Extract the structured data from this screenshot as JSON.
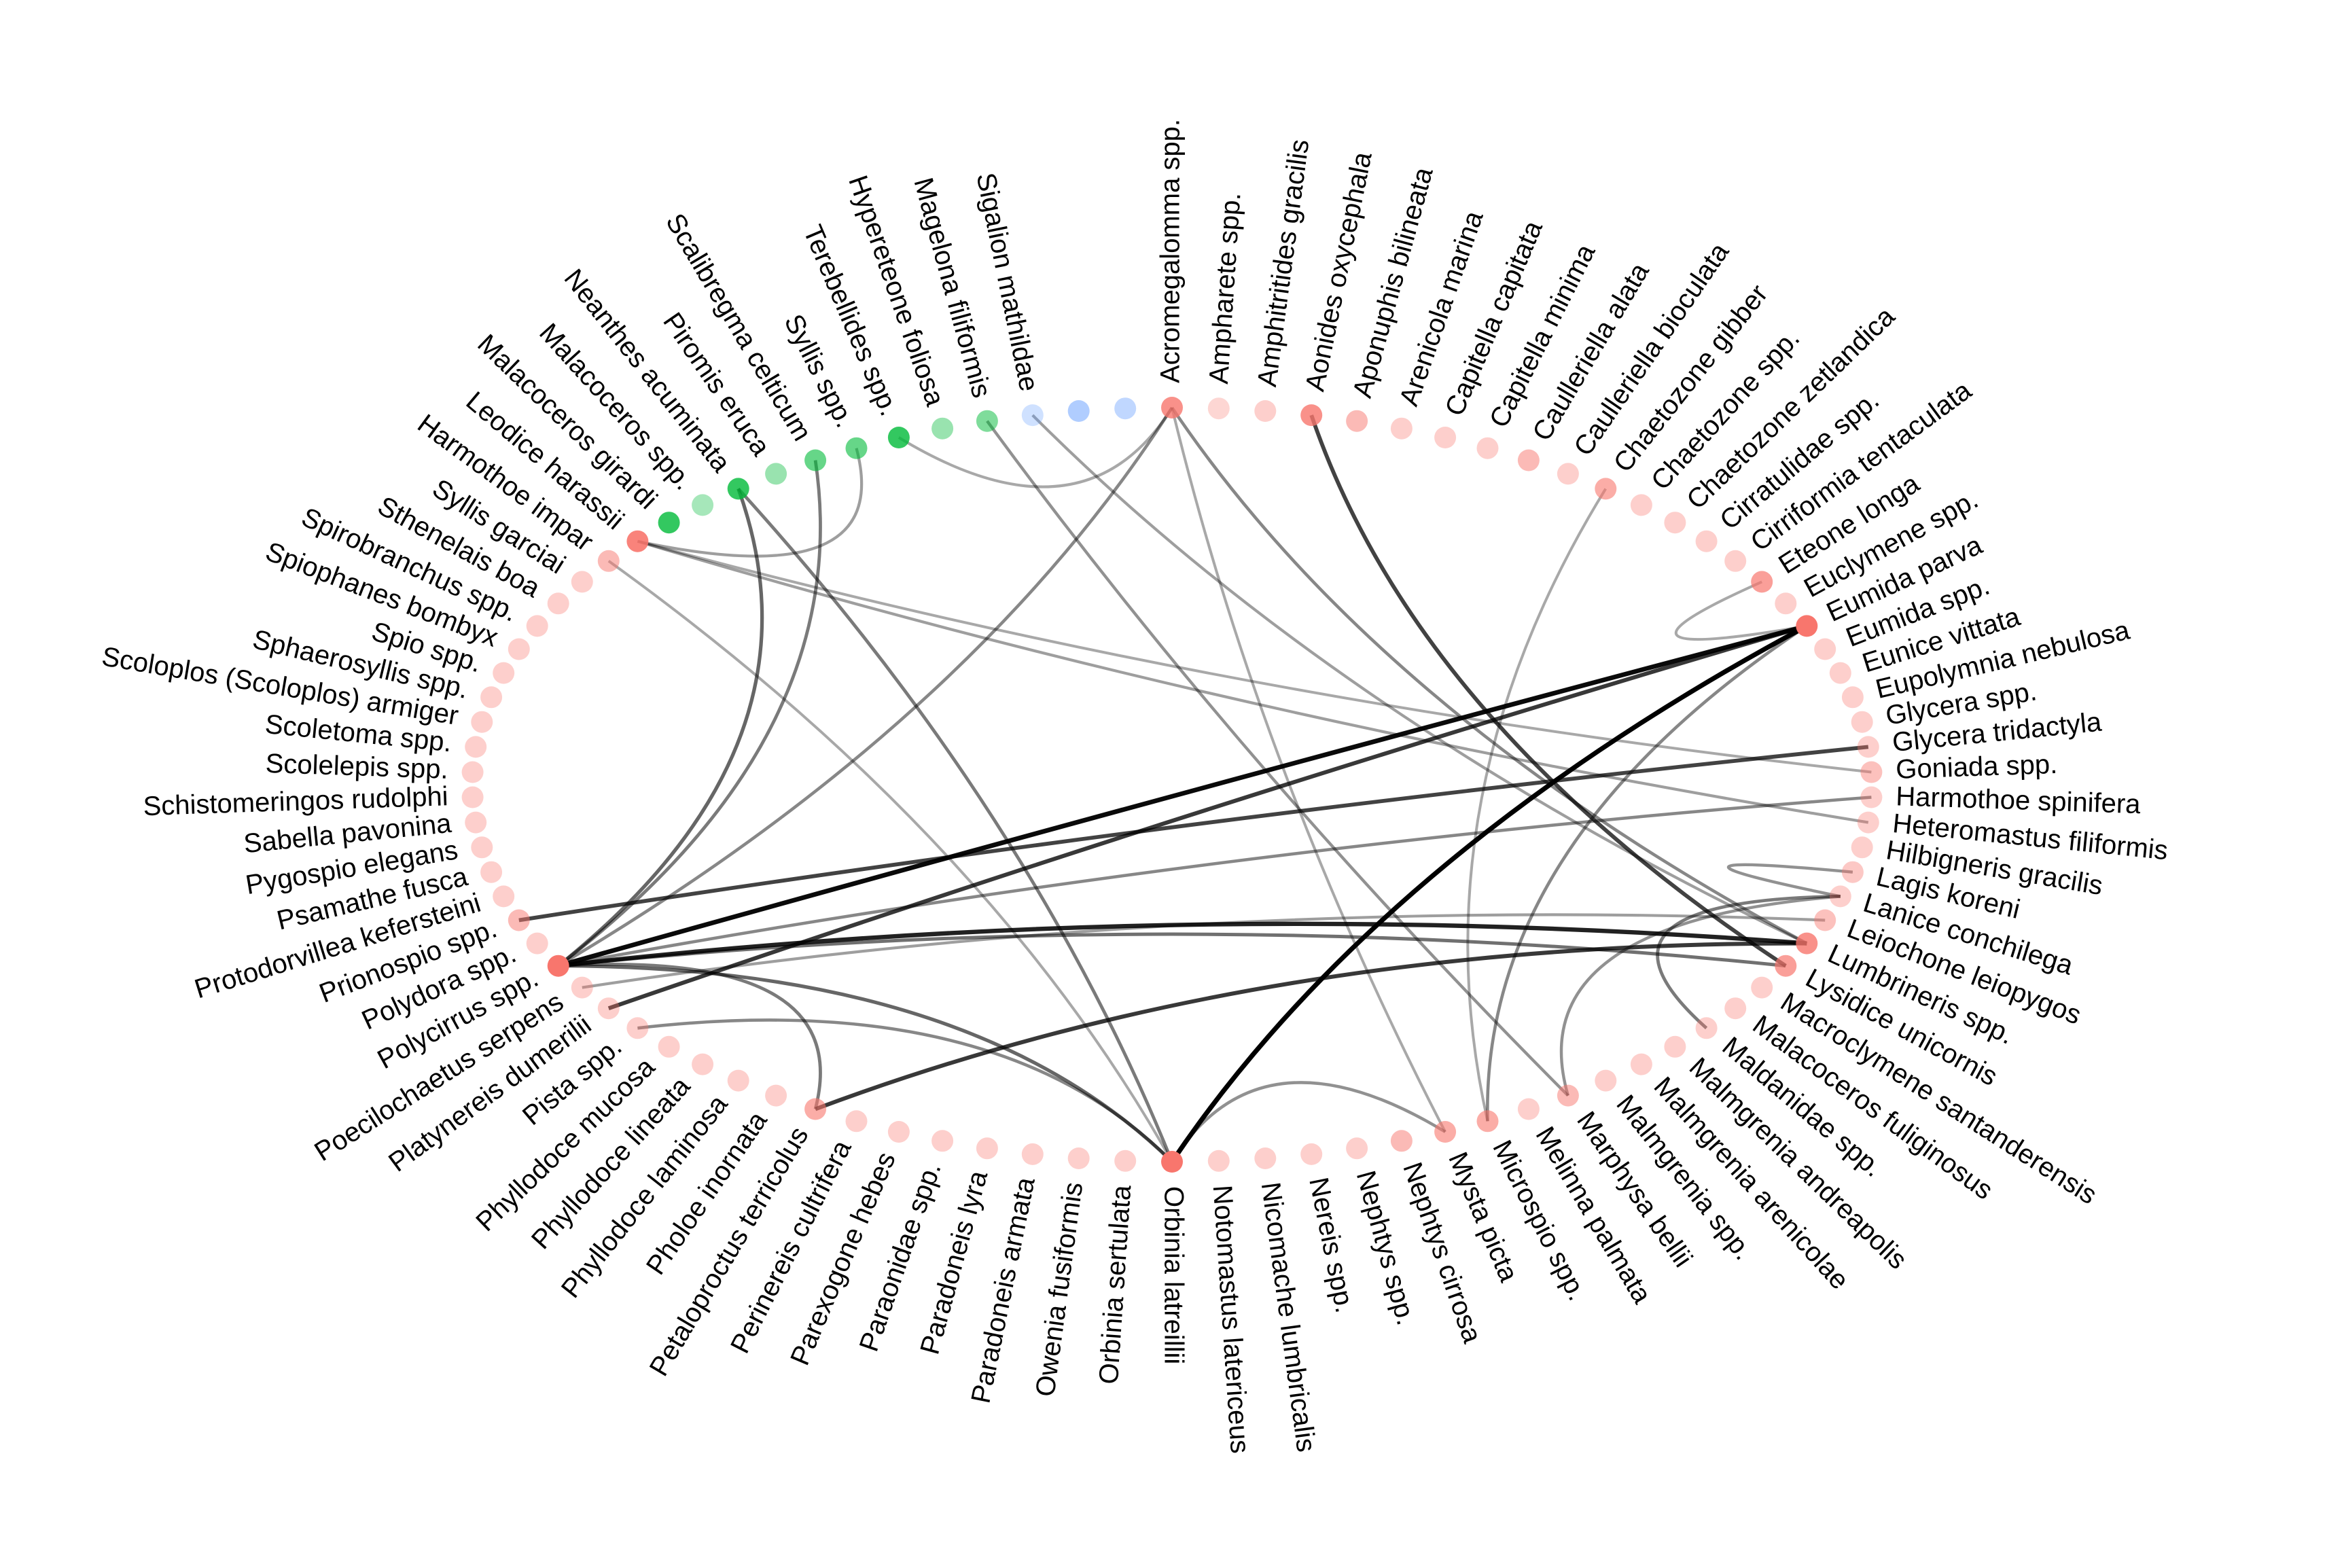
{
  "colors": {
    "red": "#f8766d",
    "green": "#00ba38",
    "blue": "#619cff",
    "edge": "#000000"
  },
  "nodes": [
    {
      "label": "Acromegalomma spp.",
      "group": "red",
      "strength": 0.8
    },
    {
      "label": "Ampharete spp.",
      "group": "red",
      "strength": 0.3
    },
    {
      "label": "Amphitritides gracilis",
      "group": "red",
      "strength": 0.35
    },
    {
      "label": "Aonides oxycephala",
      "group": "red",
      "strength": 0.8
    },
    {
      "label": "Aponuphis bilineata",
      "group": "red",
      "strength": 0.5
    },
    {
      "label": "Arenicola marina",
      "group": "red",
      "strength": 0.35
    },
    {
      "label": "Capitella capitata",
      "group": "red",
      "strength": 0.35
    },
    {
      "label": "Capitella minima",
      "group": "red",
      "strength": 0.35
    },
    {
      "label": "Caulleriella alata",
      "group": "red",
      "strength": 0.5
    },
    {
      "label": "Caulleriella bioculata",
      "group": "red",
      "strength": 0.35
    },
    {
      "label": "Chaetozone gibber",
      "group": "red",
      "strength": 0.6
    },
    {
      "label": "Chaetozone spp.",
      "group": "red",
      "strength": 0.35
    },
    {
      "label": "Chaetozone zetlandica",
      "group": "red",
      "strength": 0.35
    },
    {
      "label": "Cirratulidae spp.",
      "group": "red",
      "strength": 0.35
    },
    {
      "label": "Cirriformia tentaculata",
      "group": "red",
      "strength": 0.35
    },
    {
      "label": "Eteone longa",
      "group": "red",
      "strength": 0.7
    },
    {
      "label": "Euclymene spp.",
      "group": "red",
      "strength": 0.35
    },
    {
      "label": "Eumida parva",
      "group": "red",
      "strength": 1.0
    },
    {
      "label": "Eumida spp.",
      "group": "red",
      "strength": 0.35
    },
    {
      "label": "Eunice vittata",
      "group": "red",
      "strength": 0.35
    },
    {
      "label": "Eupolymnia nebulosa",
      "group": "red",
      "strength": 0.35
    },
    {
      "label": "Glycera spp.",
      "group": "red",
      "strength": 0.35
    },
    {
      "label": "Glycera tridactyla",
      "group": "red",
      "strength": 0.35
    },
    {
      "label": "Goniada spp.",
      "group": "red",
      "strength": 0.45
    },
    {
      "label": "Harmothoe spinifera",
      "group": "red",
      "strength": 0.35
    },
    {
      "label": "Heteromastus filiformis",
      "group": "red",
      "strength": 0.35
    },
    {
      "label": "Hilbigneris gracilis",
      "group": "red",
      "strength": 0.35
    },
    {
      "label": "Lagis koreni",
      "group": "red",
      "strength": 0.4
    },
    {
      "label": "Lanice conchilega",
      "group": "red",
      "strength": 0.35
    },
    {
      "label": "Leiochone leiopygos",
      "group": "red",
      "strength": 0.45
    },
    {
      "label": "Lumbrineris spp.",
      "group": "red",
      "strength": 0.8
    },
    {
      "label": "Lysidice unicornis",
      "group": "red",
      "strength": 0.7
    },
    {
      "label": "Macroclymene santanderensis",
      "group": "red",
      "strength": 0.35
    },
    {
      "label": "Malacoceros fuliginosus",
      "group": "red",
      "strength": 0.35
    },
    {
      "label": "Maldanidae spp.",
      "group": "red",
      "strength": 0.35
    },
    {
      "label": "Malmgrenia andreapolis",
      "group": "red",
      "strength": 0.35
    },
    {
      "label": "Malmgrenia arenicolae",
      "group": "red",
      "strength": 0.35
    },
    {
      "label": "Malmgrenia spp.",
      "group": "red",
      "strength": 0.35
    },
    {
      "label": "Marphysa bellii",
      "group": "red",
      "strength": 0.5
    },
    {
      "label": "Melinna palmata",
      "group": "red",
      "strength": 0.35
    },
    {
      "label": "Microspio spp.",
      "group": "red",
      "strength": 0.6
    },
    {
      "label": "Mysta picta",
      "group": "red",
      "strength": 0.6
    },
    {
      "label": "Nephtys cirrosa",
      "group": "red",
      "strength": 0.5
    },
    {
      "label": "Nephtys spp.",
      "group": "red",
      "strength": 0.35
    },
    {
      "label": "Nereis spp.",
      "group": "red",
      "strength": 0.35
    },
    {
      "label": "Nicomache lumbricalis",
      "group": "red",
      "strength": 0.35
    },
    {
      "label": "Notomastus latericeus",
      "group": "red",
      "strength": 0.35
    },
    {
      "label": "Orbinia latreillii",
      "group": "red",
      "strength": 1.0
    },
    {
      "label": "Orbinia sertulata",
      "group": "red",
      "strength": 0.35
    },
    {
      "label": "Owenia fusiformis",
      "group": "red",
      "strength": 0.35
    },
    {
      "label": "Paradoneis armata",
      "group": "red",
      "strength": 0.35
    },
    {
      "label": "Paradoneis lyra",
      "group": "red",
      "strength": 0.35
    },
    {
      "label": "Paraonidae spp.",
      "group": "red",
      "strength": 0.35
    },
    {
      "label": "Parexogone hebes",
      "group": "red",
      "strength": 0.35
    },
    {
      "label": "Perinereis cultrifera",
      "group": "red",
      "strength": 0.35
    },
    {
      "label": "Petaloproctus terricolus",
      "group": "red",
      "strength": 0.6
    },
    {
      "label": "Pholoe inornata",
      "group": "red",
      "strength": 0.35
    },
    {
      "label": "Phyllodoce laminosa",
      "group": "red",
      "strength": 0.35
    },
    {
      "label": "Phyllodoce lineata",
      "group": "red",
      "strength": 0.35
    },
    {
      "label": "Phyllodoce mucosa",
      "group": "red",
      "strength": 0.35
    },
    {
      "label": "Pista spp.",
      "group": "red",
      "strength": 0.35
    },
    {
      "label": "Platynereis dumerilii",
      "group": "red",
      "strength": 0.35
    },
    {
      "label": "Poecilochaetus serpens",
      "group": "red",
      "strength": 0.35
    },
    {
      "label": "Polycirrus spp.",
      "group": "red",
      "strength": 1.0
    },
    {
      "label": "Polydora spp.",
      "group": "red",
      "strength": 0.35
    },
    {
      "label": "Prionospio spp.",
      "group": "red",
      "strength": 0.5
    },
    {
      "label": "Protodorvillea kefersteini",
      "group": "red",
      "strength": 0.35
    },
    {
      "label": "Psamathe fusca",
      "group": "red",
      "strength": 0.35
    },
    {
      "label": "Pygospio elegans",
      "group": "red",
      "strength": 0.35
    },
    {
      "label": "Sabella pavonina",
      "group": "red",
      "strength": 0.35
    },
    {
      "label": "Schistomeringos rudolphi",
      "group": "red",
      "strength": 0.35
    },
    {
      "label": "Scolelepis spp.",
      "group": "red",
      "strength": 0.35
    },
    {
      "label": "Scoletoma spp.",
      "group": "red",
      "strength": 0.35
    },
    {
      "label": "Scoloplos (Scoloplos) armiger",
      "group": "red",
      "strength": 0.35
    },
    {
      "label": "Sphaerosyllis spp.",
      "group": "red",
      "strength": 0.35
    },
    {
      "label": "Spio spp.",
      "group": "red",
      "strength": 0.35
    },
    {
      "label": "Spiophanes bombyx",
      "group": "red",
      "strength": 0.35
    },
    {
      "label": "Spirobranchus spp.",
      "group": "red",
      "strength": 0.35
    },
    {
      "label": "Sthenelais boa",
      "group": "red",
      "strength": 0.35
    },
    {
      "label": "Syllis garciai",
      "group": "red",
      "strength": 0.35
    },
    {
      "label": "Harmothoe impar",
      "group": "red",
      "strength": 0.5
    },
    {
      "label": "Leodice harassii",
      "group": "red",
      "strength": 0.9
    },
    {
      "label": "Malacoceros girardi",
      "group": "green",
      "strength": 0.8
    },
    {
      "label": "Malacoceros spp.",
      "group": "green",
      "strength": 0.35
    },
    {
      "label": "Neanthes acuminata",
      "group": "green",
      "strength": 0.8
    },
    {
      "label": "Piromis eruca",
      "group": "green",
      "strength": 0.4
    },
    {
      "label": "Scalibregma celticum",
      "group": "green",
      "strength": 0.6
    },
    {
      "label": "Syllis spp.",
      "group": "green",
      "strength": 0.6
    },
    {
      "label": "Terebellides spp.",
      "group": "green",
      "strength": 0.8
    },
    {
      "label": "Hypereteone foliosa",
      "group": "green",
      "strength": 0.4
    },
    {
      "label": "Magelona filiformis",
      "group": "green",
      "strength": 0.5
    },
    {
      "label": "Sigalion mathildae",
      "group": "blue",
      "strength": 0.3
    },
    {
      "label": "",
      "group": "blue",
      "strength": 0.5
    },
    {
      "label": "",
      "group": "blue",
      "strength": 0.4
    }
  ],
  "edges": [
    {
      "from": "Eumida parva",
      "to": "Polycirrus spp.",
      "weight": 0.95
    },
    {
      "from": "Eumida parva",
      "to": "Orbinia latreillii",
      "weight": 1.0
    },
    {
      "from": "Eumida parva",
      "to": "Platynereis dumerilii",
      "weight": 0.75
    },
    {
      "from": "Glycera tridactyla",
      "to": "Prionospio spp.",
      "weight": 0.7
    },
    {
      "from": "Lumbrineris spp.",
      "to": "Polycirrus spp.",
      "weight": 0.85
    },
    {
      "from": "Lumbrineris spp.",
      "to": "Petaloproctus terricolus",
      "weight": 0.75
    },
    {
      "from": "Lysidice unicornis",
      "to": "Polycirrus spp.",
      "weight": 0.5
    },
    {
      "from": "Aonides oxycephala",
      "to": "Lysidice unicornis",
      "weight": 0.7
    },
    {
      "from": "Orbinia latreillii",
      "to": "Polycirrus spp.",
      "weight": 0.55
    },
    {
      "from": "Orbinia latreillii",
      "to": "Mysta picta",
      "weight": 0.35
    },
    {
      "from": "Neanthes acuminata",
      "to": "Orbinia latreillii",
      "weight": 0.45
    },
    {
      "from": "Neanthes acuminata",
      "to": "Polycirrus spp.",
      "weight": 0.55
    },
    {
      "from": "Scalibregma celticum",
      "to": "Polycirrus spp.",
      "weight": 0.45
    },
    {
      "from": "Syllis spp.",
      "to": "Leodice harassii",
      "weight": 0.3
    },
    {
      "from": "Terebellides spp.",
      "to": "Acromegalomma spp.",
      "weight": 0.25
    },
    {
      "from": "Acromegalomma spp.",
      "to": "Polycirrus spp.",
      "weight": 0.4
    },
    {
      "from": "Acromegalomma spp.",
      "to": "Lumbrineris spp.",
      "weight": 0.4
    },
    {
      "from": "Acromegalomma spp.",
      "to": "Mysta picta",
      "weight": 0.25
    },
    {
      "from": "Magelona filiformis",
      "to": "Marphysa bellii",
      "weight": 0.35
    },
    {
      "from": "Sigalion mathildae",
      "to": "Lumbrineris spp.",
      "weight": 0.3
    },
    {
      "from": "Leodice harassii",
      "to": "Heteromastus filiformis",
      "weight": 0.3
    },
    {
      "from": "Leodice harassii",
      "to": "Goniada spp.",
      "weight": 0.25
    },
    {
      "from": "Harmothoe impar",
      "to": "Orbinia latreillii",
      "weight": 0.25
    },
    {
      "from": "Chaetozone gibber",
      "to": "Microspio spp.",
      "weight": 0.25
    },
    {
      "from": "Eumida parva",
      "to": "Eteone longa",
      "weight": 0.25
    },
    {
      "from": "Eumida parva",
      "to": "Microspio spp.",
      "weight": 0.4
    },
    {
      "from": "Lagis koreni",
      "to": "Lanice conchilega",
      "weight": 0.35
    },
    {
      "from": "Lanice conchilega",
      "to": "Maldanidae spp.",
      "weight": 0.45
    },
    {
      "from": "Lanice conchilega",
      "to": "Marphysa bellii",
      "weight": 0.35
    },
    {
      "from": "Orbinia latreillii",
      "to": "Pista spp.",
      "weight": 0.4
    },
    {
      "from": "Petaloproctus terricolus",
      "to": "Polycirrus spp.",
      "weight": 0.45
    },
    {
      "from": "Polycirrus spp.",
      "to": "Harmothoe spinifera",
      "weight": 0.4
    },
    {
      "from": "Poecilochaetus serpens",
      "to": "Leiochone leiopygos",
      "weight": 0.3
    }
  ]
}
